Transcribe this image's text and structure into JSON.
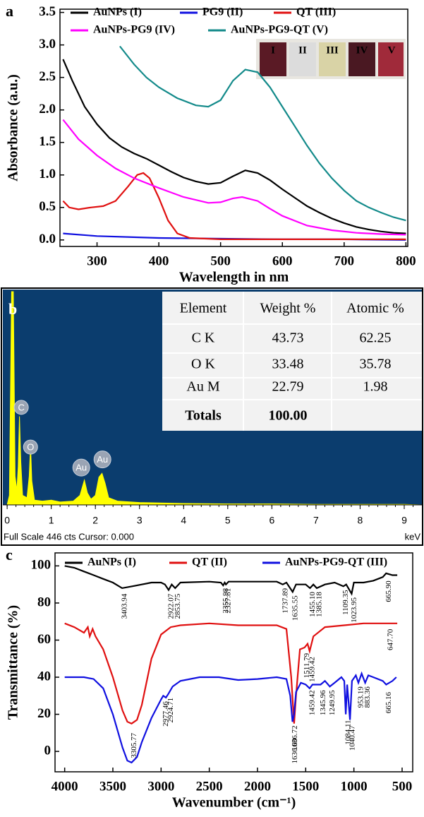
{
  "chart_data": [
    {
      "type": "line",
      "panel_label": "a",
      "xlabel": "Wavelength in nm",
      "ylabel": "Absorbance (a.u.)",
      "xlim": [
        240,
        803
      ],
      "ylim": [
        -0.1,
        3.55
      ],
      "xticks": [
        300,
        400,
        500,
        600,
        700,
        800
      ],
      "yticks": [
        {
          "value": 0,
          "label": "0.0"
        },
        0.5,
        {
          "value": 1,
          "label": "1.0"
        },
        1.5,
        {
          "value": 2,
          "label": "2.0"
        },
        2.5,
        {
          "value": 3,
          "label": "3.0"
        },
        3.5
      ],
      "legend": "top",
      "series": [
        {
          "name": "AuNPs (I)",
          "color": "#000000",
          "x": [
            245,
            260,
            280,
            300,
            320,
            340,
            360,
            380,
            400,
            420,
            440,
            460,
            480,
            500,
            520,
            540,
            560,
            580,
            600,
            620,
            640,
            660,
            680,
            700,
            720,
            740,
            760,
            780,
            800
          ],
          "values": [
            2.78,
            2.45,
            2.05,
            1.78,
            1.57,
            1.43,
            1.33,
            1.25,
            1.15,
            1.05,
            0.96,
            0.9,
            0.86,
            0.88,
            0.98,
            1.07,
            1.03,
            0.92,
            0.78,
            0.65,
            0.52,
            0.42,
            0.33,
            0.26,
            0.2,
            0.16,
            0.13,
            0.11,
            0.1
          ]
        },
        {
          "name": "PG9 (II)",
          "color": "#1010e0",
          "x": [
            245,
            300,
            400,
            500,
            600,
            700,
            800
          ],
          "values": [
            0.1,
            0.06,
            0.03,
            0.02,
            0.01,
            0.01,
            0.0
          ]
        },
        {
          "name": "QT (III)",
          "color": "#e01010",
          "x": [
            245,
            255,
            270,
            290,
            310,
            330,
            350,
            365,
            375,
            385,
            400,
            415,
            430,
            450,
            500,
            600,
            700,
            800
          ],
          "values": [
            0.6,
            0.5,
            0.47,
            0.5,
            0.52,
            0.6,
            0.82,
            1.0,
            1.03,
            0.95,
            0.65,
            0.3,
            0.1,
            0.03,
            0.01,
            0.01,
            0.01,
            0.01
          ]
        },
        {
          "name": "AuNPs-PG9 (IV)",
          "color": "#ff00ff",
          "x": [
            245,
            270,
            300,
            330,
            360,
            400,
            440,
            480,
            500,
            520,
            535,
            560,
            580,
            600,
            640,
            680,
            720,
            760,
            800
          ],
          "values": [
            1.85,
            1.55,
            1.3,
            1.1,
            0.95,
            0.8,
            0.66,
            0.57,
            0.58,
            0.64,
            0.66,
            0.6,
            0.48,
            0.37,
            0.22,
            0.15,
            0.11,
            0.09,
            0.08
          ]
        },
        {
          "name": "AuNPs-PG9-QT (V)",
          "color": "#138a8a",
          "x": [
            337,
            360,
            380,
            400,
            430,
            460,
            480,
            500,
            520,
            540,
            560,
            580,
            600,
            620,
            640,
            660,
            680,
            700,
            720,
            740,
            760,
            780,
            800
          ],
          "values": [
            2.98,
            2.7,
            2.5,
            2.35,
            2.18,
            2.07,
            2.05,
            2.15,
            2.45,
            2.62,
            2.58,
            2.35,
            2.05,
            1.75,
            1.45,
            1.18,
            0.95,
            0.76,
            0.6,
            0.5,
            0.42,
            0.35,
            0.3
          ]
        }
      ],
      "inset_labels": [
        "I",
        "II",
        "III",
        "IV",
        "V"
      ]
    },
    {
      "type": "area",
      "panel_label": "b",
      "xlabel": "keV",
      "footer": "Full Scale 446 cts Cursor: 0.000",
      "xlim": [
        -0.05,
        9.4
      ],
      "ylim": [
        0,
        446
      ],
      "xticks": [
        0,
        1,
        2,
        3,
        4,
        5,
        6,
        7,
        8,
        9
      ],
      "color": "#ffff00",
      "background": "#0b3d6e",
      "x": [
        0,
        0.05,
        0.1,
        0.14,
        0.18,
        0.22,
        0.25,
        0.28,
        0.31,
        0.35,
        0.45,
        0.5,
        0.53,
        0.56,
        0.62,
        0.8,
        1.0,
        1.2,
        1.5,
        1.65,
        1.75,
        1.82,
        1.9,
        2.0,
        2.08,
        2.15,
        2.22,
        2.3,
        2.5,
        3,
        4,
        5,
        6,
        7,
        8,
        9,
        9.4
      ],
      "values": [
        0,
        20,
        446,
        446,
        60,
        30,
        80,
        185,
        90,
        20,
        15,
        60,
        125,
        50,
        10,
        8,
        10,
        6,
        8,
        20,
        52,
        25,
        12,
        20,
        58,
        66,
        45,
        15,
        8,
        5,
        3,
        2,
        2,
        1,
        1,
        1,
        0
      ],
      "peak_labels": [
        {
          "text": "C",
          "x": 0.32,
          "y": 204
        },
        {
          "text": "O",
          "x": 0.53,
          "y": 121
        },
        {
          "text": "Au",
          "x": 1.68,
          "y": 78
        },
        {
          "text": "Au",
          "x": 2.16,
          "y": 95
        }
      ],
      "table": {
        "header": [
          "Element",
          "Weight %",
          "Atomic %"
        ],
        "rows": [
          [
            "C K",
            "43.73",
            "62.25"
          ],
          [
            "O K",
            "33.48",
            "35.78"
          ],
          [
            "Au M",
            "22.79",
            "1.98"
          ],
          [
            "Totals",
            "100.00",
            ""
          ]
        ]
      }
    },
    {
      "type": "line",
      "panel_label": "c",
      "xlabel": "Wavenumber (cm⁻¹)",
      "ylabel": "Transmittance (%)",
      "xlim": [
        4100,
        390
      ],
      "ylim": [
        -11,
        107
      ],
      "xticks": [
        4000,
        3500,
        3000,
        2500,
        2000,
        1500,
        1000,
        500
      ],
      "yticks": [
        0,
        20,
        40,
        60,
        80,
        100
      ],
      "legend": "top",
      "series": [
        {
          "name": "AuNPs (I)",
          "color": "#000000",
          "x": [
            4000,
            3900,
            3800,
            3700,
            3600,
            3500,
            3403.94,
            3300,
            3200,
            3100,
            3000,
            2960,
            2922.07,
            2890,
            2853.75,
            2800,
            2500,
            2380,
            2355.98,
            2340,
            2327.81,
            2300,
            2000,
            1800,
            1737.89,
            1700,
            1635.55,
            1600,
            1500,
            1455.1,
            1420,
            1385.18,
            1300,
            1200,
            1109.35,
            1080,
            1023.95,
            1000,
            900,
            800,
            700,
            665.9,
            600,
            550
          ],
          "values": [
            100,
            99,
            97,
            95,
            93,
            91,
            88,
            89,
            90,
            91,
            91,
            90,
            87,
            90,
            88,
            91,
            91.5,
            91,
            89.5,
            91,
            90,
            91.5,
            91.5,
            91.5,
            90,
            91,
            86,
            90,
            90,
            88,
            90,
            88,
            90,
            91,
            89,
            90,
            85,
            91,
            91,
            92,
            94,
            96,
            95,
            95
          ]
        },
        {
          "name": "QT (II)",
          "color": "#e01010",
          "x": [
            4000,
            3900,
            3800,
            3760,
            3740,
            3710,
            3680,
            3600,
            3500,
            3400,
            3350,
            3305.77,
            3250,
            3200,
            3100,
            3000,
            2900,
            2800,
            2500,
            2200,
            2000,
            1800,
            1700,
            1650,
            1620,
            1600,
            1560,
            1511.79,
            1480,
            1459.42,
            1420,
            1300,
            1100,
            900,
            700,
            647.7,
            550
          ],
          "values": [
            69,
            67,
            64,
            67,
            62,
            66,
            62,
            55,
            40,
            22,
            16,
            15,
            17,
            25,
            50,
            63,
            67,
            68,
            69,
            68,
            68,
            68,
            66,
            40,
            15,
            30,
            55,
            56,
            58,
            54,
            62,
            67,
            68,
            69,
            69,
            69,
            69
          ]
        },
        {
          "name": "AuNPs-PG9-QT (III)",
          "color": "#1010e0",
          "x": [
            4000,
            3800,
            3700,
            3600,
            3500,
            3400,
            3350,
            3305.77,
            3250,
            3200,
            3100,
            3000,
            2977.46,
            2950,
            2924.71,
            2880,
            2800,
            2600,
            2400,
            2200,
            2000,
            1800,
            1700,
            1660,
            1636.72,
            1620,
            1600,
            1550,
            1500,
            1459.42,
            1430,
            1345.96,
            1300,
            1249.95,
            1200,
            1130,
            1100,
            1084.11,
            1070,
            1040.47,
            1020,
            980,
            953.19,
            920,
            883.36,
            850,
            800,
            700,
            665.16,
            600,
            560
          ],
          "values": [
            40,
            40,
            39,
            34,
            20,
            2,
            -5,
            -6,
            -3,
            5,
            18,
            28,
            30,
            29,
            31,
            35,
            38,
            40,
            40,
            38.5,
            39,
            40,
            39,
            30,
            16,
            20,
            32,
            37,
            36,
            34,
            36,
            36,
            38,
            35,
            37,
            40,
            38,
            20,
            36,
            17,
            38,
            41,
            37,
            42,
            37,
            41,
            40,
            38,
            36,
            38,
            40
          ]
        }
      ],
      "annotations": [
        {
          "text": "3403.94",
          "x": 3403.94,
          "y": 85
        },
        {
          "text": "2922.07",
          "x": 2922.07,
          "y": 85
        },
        {
          "text": "2853.75",
          "x": 2853.75,
          "y": 85
        },
        {
          "text": "2355.98",
          "x": 2355.98,
          "y": 88
        },
        {
          "text": "2327.81",
          "x": 2327.81,
          "y": 88
        },
        {
          "text": "1737.89",
          "x": 1737.89,
          "y": 88
        },
        {
          "text": "1635.55",
          "x": 1635.55,
          "y": 84
        },
        {
          "text": "1455.10",
          "x": 1455.1,
          "y": 86
        },
        {
          "text": "1385.18",
          "x": 1385.18,
          "y": 86
        },
        {
          "text": "1109.35",
          "x": 1109.35,
          "y": 87
        },
        {
          "text": "1023.95",
          "x": 1023.95,
          "y": 83
        },
        {
          "text": "665.90",
          "x": 665.9,
          "y": 92
        },
        {
          "text": "1511.79",
          "x": 1511.79,
          "y": 53
        },
        {
          "text": "1459.42",
          "x": 1459.42,
          "y": 51
        },
        {
          "text": "647.70",
          "x": 647.7,
          "y": 66
        },
        {
          "text": "3305.77",
          "x": 3305.77,
          "y": 10
        },
        {
          "text": "2977.46",
          "x": 2977.46,
          "y": 27
        },
        {
          "text": "2924.71",
          "x": 2924.71,
          "y": 29
        },
        {
          "text": "1636.00",
          "x": 1636,
          "y": 7
        },
        {
          "text": "1636.72",
          "x": 1636.72,
          "y": 14
        },
        {
          "text": "1459.42",
          "x": 1459.42,
          "y": 33
        },
        {
          "text": "1345.96",
          "x": 1345.96,
          "y": 33
        },
        {
          "text": "1249.95",
          "x": 1249.95,
          "y": 33
        },
        {
          "text": "1084.11",
          "x": 1084.11,
          "y": 17
        },
        {
          "text": "1040.47",
          "x": 1040.47,
          "y": 14
        },
        {
          "text": "953.19",
          "x": 953.19,
          "y": 35
        },
        {
          "text": "883.36",
          "x": 883.36,
          "y": 35
        },
        {
          "text": "665.16",
          "x": 665.16,
          "y": 32
        }
      ]
    }
  ]
}
